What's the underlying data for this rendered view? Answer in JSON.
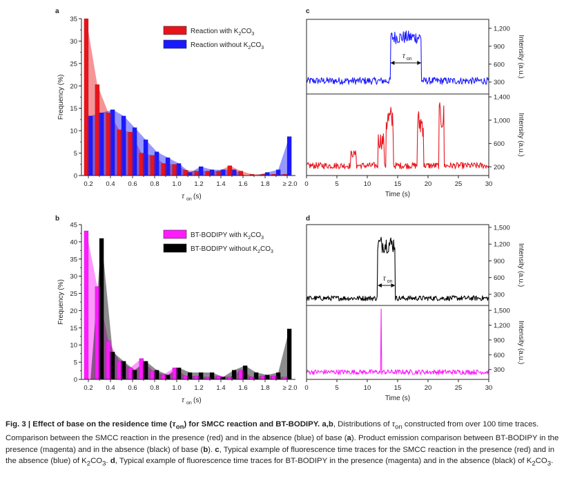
{
  "figure": {
    "panel_labels": [
      "a",
      "b",
      "c",
      "d"
    ],
    "caption": {
      "fig_label": "Fig. 3 |",
      "title_parts": [
        "Effect of base on the residence time (",
        "τ",
        "on",
        ") for SMCC reaction and BT-BODIPY."
      ],
      "ab_label": "a,b",
      "ab_text_before": ", Distributions of ",
      "tau": "τ",
      "tau_sub": "on",
      "ab_text_after": " constructed from over 100 time traces. Comparison between the SMCC reaction in the presence (red) and in the absence (blue) of base (",
      "a": "a",
      "mid1": "). Product emission comparison between BT-BODIPY in the presence (magenta) and in the absence (black) of base (",
      "b": "b",
      "mid2": "). ",
      "c": "c",
      "c_text_before": ", Typical example of fluorescence time traces for the SMCC reaction in the presence (red) and in the absence (blue) of K",
      "c_sub2": "2",
      "c_text_co": "CO",
      "c_sub3": "3",
      "c_text_after": ". ",
      "d": "d",
      "d_text_before": ", Typical example of fluorescence time traces for BT-BODIPY in the presence (magenta) and in the absence (black) of K",
      "d_sub2": "2",
      "d_text_co": "CO",
      "d_sub3": "3",
      "d_text_after": "."
    }
  },
  "chart_data": [
    {
      "panel": "a",
      "type": "bar",
      "xlabel_main": "τ",
      "xlabel_sub": "on",
      "xlabel_unit": " (s)",
      "ylabel": "Frequency (%)",
      "ylim": [
        0,
        35
      ],
      "yticks": [
        "0",
        "5",
        "10",
        "15",
        "20",
        "25",
        "30",
        "35"
      ],
      "xtick_labels": [
        "0.2",
        "0.4",
        "0.6",
        "0.8",
        "1.0",
        "1.2",
        "1.4",
        "1.6",
        "1.8",
        "≥ 2.0"
      ],
      "categories": [
        "0.2",
        "0.3",
        "0.4",
        "0.5",
        "0.6",
        "0.7",
        "0.8",
        "0.9",
        "1.0",
        "1.1",
        "1.2",
        "1.3",
        "1.4",
        "1.5",
        "1.6",
        "1.7",
        "1.8",
        "1.9",
        "≥ 2.0"
      ],
      "series": [
        {
          "name": "Reaction with K2CO3",
          "label_pre": "Reaction with K",
          "label_post": "CO",
          "color": "#e8141b",
          "values": [
            35.0,
            20.3,
            14.0,
            10.2,
            9.7,
            5.0,
            4.5,
            2.7,
            2.5,
            1.2,
            1.0,
            1.0,
            1.0,
            2.2,
            1.0,
            0.3,
            0.3,
            0.3,
            0.3
          ]
        },
        {
          "name": "Reaction without K2CO3",
          "label_pre": "Reaction without K",
          "label_post": "CO",
          "color": "#1a1aff",
          "values": [
            13.3,
            14.0,
            14.7,
            13.3,
            10.7,
            8.0,
            5.3,
            4.0,
            2.7,
            0.7,
            2.0,
            1.3,
            1.3,
            1.3,
            0.0,
            0.0,
            0.7,
            1.3,
            8.7
          ]
        }
      ]
    },
    {
      "panel": "b",
      "type": "bar",
      "xlabel_main": "τ",
      "xlabel_sub": "on",
      "xlabel_unit": " (s)",
      "ylabel": "Frequency (%)",
      "ylim": [
        0,
        45
      ],
      "yticks": [
        "0",
        "5",
        "10",
        "15",
        "20",
        "25",
        "30",
        "35",
        "40",
        "45"
      ],
      "xtick_labels": [
        "0.2",
        "0.4",
        "0.6",
        "0.8",
        "1.0",
        "1.2",
        "1.4",
        "1.6",
        "1.8",
        "≥ 2.0"
      ],
      "categories": [
        "0.2",
        "0.3",
        "0.4",
        "0.5",
        "0.6",
        "0.7",
        "0.8",
        "0.9",
        "1.0",
        "1.1",
        "1.2",
        "1.3",
        "1.4",
        "1.5",
        "1.6",
        "1.7",
        "1.8",
        "1.9",
        "≥ 2.0"
      ],
      "series": [
        {
          "name": "BT-BODIPY with K2CO3",
          "label_pre": "BT-BODIPY with K",
          "label_post": "CO",
          "color": "#ff1aff",
          "values": [
            43.2,
            27.0,
            11.3,
            5.4,
            3.4,
            6.1,
            2.5,
            1.4,
            3.4,
            1.0,
            1.0,
            0.7,
            1.0,
            0.7,
            2.7,
            0.7,
            1.0,
            1.0,
            0.7
          ]
        },
        {
          "name": "BT-BODIPY without K2CO3",
          "label_pre": "BT-BODIPY without K",
          "label_post": "CO",
          "color": "#000000",
          "values": [
            0.0,
            41.0,
            8.0,
            5.3,
            2.7,
            5.3,
            2.7,
            1.3,
            3.4,
            2.0,
            2.0,
            2.0,
            0.7,
            2.7,
            4.0,
            2.0,
            1.3,
            2.0,
            14.7
          ]
        }
      ]
    },
    {
      "panel": "c",
      "type": "line",
      "xlabel": "Time (s)",
      "ylabel": "Intensity (a.u.)",
      "x_range": [
        0,
        30
      ],
      "xtick_labels": [
        "0",
        "5",
        "10",
        "15",
        "20",
        "25",
        "30"
      ],
      "on_marker_main": "τ",
      "on_marker_sub": "on",
      "on_interval_s": [
        13.8,
        18.9
      ],
      "series": [
        {
          "name": "without K2CO3 (blue)",
          "color": "#1a1aff",
          "ylim": [
            100,
            1350
          ],
          "yticks": [
            "300",
            "600",
            "900",
            "1,200"
          ],
          "baseline": 320,
          "noise": 60,
          "events": [
            {
              "start": 13.8,
              "end": 18.9,
              "level": 1050,
              "noise": 110
            }
          ]
        },
        {
          "name": "with K2CO3 (red)",
          "color": "#e8141b",
          "ylim": [
            50,
            1450
          ],
          "yticks": [
            "200",
            "600",
            "1,000",
            "1,400"
          ],
          "baseline": 220,
          "noise": 55,
          "events": [
            {
              "start": 7.3,
              "end": 8.2,
              "level": 420,
              "noise": 60
            },
            {
              "start": 11.8,
              "end": 12.8,
              "level": 650,
              "noise": 150
            },
            {
              "start": 13.1,
              "end": 14.3,
              "level": 1000,
              "noise": 260
            },
            {
              "start": 18.2,
              "end": 19.3,
              "level": 950,
              "noise": 240
            },
            {
              "start": 21.8,
              "end": 22.6,
              "level": 1050,
              "noise": 250
            }
          ]
        }
      ]
    },
    {
      "panel": "d",
      "type": "line",
      "xlabel": "Time (s)",
      "ylabel": "Intensity (a.u.)",
      "x_range": [
        0,
        30
      ],
      "xtick_labels": [
        "0",
        "5",
        "10",
        "15",
        "20",
        "25",
        "30"
      ],
      "on_marker_main": "τ",
      "on_marker_sub": "on",
      "on_interval_s": [
        11.7,
        14.6
      ],
      "series": [
        {
          "name": "without K2CO3 (black)",
          "color": "#000000",
          "ylim": [
            100,
            1550
          ],
          "yticks": [
            "300",
            "600",
            "900",
            "1,200",
            "1,500"
          ],
          "baseline": 230,
          "noise": 45,
          "events": [
            {
              "start": 11.7,
              "end": 14.6,
              "level": 1200,
              "noise": 160
            }
          ]
        },
        {
          "name": "with K2CO3 (magenta)",
          "color": "#ff1aff",
          "ylim": [
            100,
            1600
          ],
          "yticks": [
            "300",
            "600",
            "900",
            "1,200",
            "1,500"
          ],
          "baseline": 250,
          "noise": 50,
          "events": [
            {
              "start": 12.2,
              "end": 12.35,
              "level": 1530,
              "noise": 0
            }
          ]
        }
      ]
    }
  ]
}
